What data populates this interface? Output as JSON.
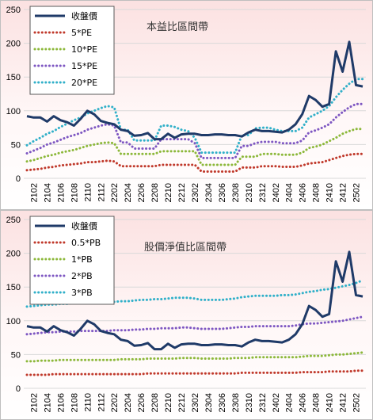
{
  "chart_data": [
    {
      "type": "line",
      "title": "本益比區間帶",
      "xlabel": "",
      "ylabel": "",
      "ylim": [
        0,
        250
      ],
      "yticks": [
        0,
        50,
        100,
        150,
        200,
        250
      ],
      "x_tick_labels": [
        "2102",
        "2104",
        "2106",
        "2108",
        "2110",
        "2112",
        "2202",
        "2204",
        "2206",
        "2208",
        "2210",
        "2212",
        "2302",
        "2304",
        "2306",
        "2308",
        "2310",
        "2312",
        "2402",
        "2404",
        "2406",
        "2408",
        "2410",
        "2412",
        "2502"
      ],
      "grid": true,
      "legend": "top-left",
      "x": [
        "2101",
        "2102",
        "2103",
        "2104",
        "2105",
        "2106",
        "2107",
        "2108",
        "2109",
        "2110",
        "2111",
        "2112",
        "2201",
        "2202",
        "2203",
        "2204",
        "2205",
        "2206",
        "2207",
        "2208",
        "2209",
        "2210",
        "2211",
        "2212",
        "2301",
        "2302",
        "2303",
        "2304",
        "2305",
        "2306",
        "2307",
        "2308",
        "2309",
        "2310",
        "2311",
        "2312",
        "2401",
        "2402",
        "2403",
        "2404",
        "2405",
        "2406",
        "2407",
        "2408",
        "2409",
        "2410",
        "2411",
        "2412",
        "2501",
        "2502",
        "2503"
      ],
      "series": [
        {
          "name": "收盤價",
          "color": "#1f3a68",
          "style": "solid",
          "values": [
            92,
            90,
            90,
            84,
            92,
            86,
            83,
            78,
            88,
            100,
            95,
            85,
            82,
            80,
            72,
            70,
            63,
            64,
            67,
            58,
            58,
            66,
            60,
            65,
            66,
            66,
            64,
            64,
            65,
            65,
            64,
            64,
            62,
            68,
            72,
            70,
            70,
            69,
            68,
            72,
            80,
            95,
            122,
            116,
            106,
            110,
            188,
            158,
            202,
            138,
            136
          ]
        },
        {
          "name": "5*PE",
          "color": "#c0392b",
          "style": "dotted",
          "values": [
            12,
            13,
            14,
            16,
            17,
            19,
            20,
            21,
            22,
            24,
            24,
            25,
            26,
            25,
            18,
            18,
            18,
            18,
            18,
            18,
            20,
            20,
            20,
            20,
            20,
            20,
            10,
            10,
            10,
            10,
            10,
            10,
            16,
            16,
            16,
            18,
            18,
            18,
            17,
            17,
            17,
            19,
            22,
            23,
            24,
            27,
            30,
            33,
            35,
            36,
            36
          ]
        },
        {
          "name": "10*PE",
          "color": "#8cb83a",
          "style": "dotted",
          "values": [
            25,
            27,
            30,
            33,
            35,
            38,
            40,
            42,
            45,
            48,
            50,
            52,
            53,
            52,
            36,
            36,
            36,
            36,
            36,
            36,
            40,
            40,
            40,
            40,
            40,
            40,
            20,
            20,
            20,
            20,
            20,
            20,
            32,
            32,
            32,
            36,
            36,
            36,
            35,
            35,
            35,
            38,
            45,
            47,
            50,
            55,
            60,
            66,
            70,
            73,
            73
          ]
        },
        {
          "name": "15*PE",
          "color": "#7e57c2",
          "style": "dotted",
          "values": [
            37,
            41,
            45,
            50,
            53,
            57,
            61,
            64,
            67,
            72,
            75,
            78,
            80,
            78,
            53,
            53,
            44,
            44,
            44,
            44,
            58,
            58,
            58,
            58,
            58,
            52,
            30,
            30,
            30,
            30,
            30,
            30,
            48,
            48,
            52,
            54,
            54,
            54,
            52,
            52,
            52,
            56,
            68,
            71,
            75,
            80,
            90,
            98,
            105,
            110,
            110
          ]
        },
        {
          "name": "20*PE",
          "color": "#31b0c9",
          "style": "dotted",
          "values": [
            49,
            55,
            60,
            66,
            70,
            76,
            81,
            86,
            90,
            96,
            100,
            104,
            107,
            105,
            72,
            72,
            56,
            56,
            56,
            56,
            78,
            78,
            76,
            72,
            70,
            60,
            38,
            38,
            38,
            38,
            38,
            38,
            64,
            64,
            74,
            75,
            75,
            72,
            70,
            70,
            70,
            75,
            90,
            95,
            100,
            107,
            120,
            131,
            140,
            147,
            147
          ]
        }
      ]
    },
    {
      "type": "line",
      "title": "股價淨值比區間帶",
      "xlabel": "",
      "ylabel": "",
      "ylim": [
        0,
        250
      ],
      "yticks": [
        0,
        50,
        100,
        150,
        200,
        250
      ],
      "x_tick_labels": [
        "2102",
        "2104",
        "2106",
        "2108",
        "2110",
        "2112",
        "2202",
        "2204",
        "2206",
        "2208",
        "2210",
        "2212",
        "2302",
        "2304",
        "2306",
        "2308",
        "2310",
        "2312",
        "2402",
        "2404",
        "2406",
        "2408",
        "2410",
        "2412",
        "2502"
      ],
      "grid": true,
      "legend": "top-left",
      "x": [
        "2101",
        "2102",
        "2103",
        "2104",
        "2105",
        "2106",
        "2107",
        "2108",
        "2109",
        "2110",
        "2111",
        "2112",
        "2201",
        "2202",
        "2203",
        "2204",
        "2205",
        "2206",
        "2207",
        "2208",
        "2209",
        "2210",
        "2211",
        "2212",
        "2301",
        "2302",
        "2303",
        "2304",
        "2305",
        "2306",
        "2307",
        "2308",
        "2309",
        "2310",
        "2311",
        "2312",
        "2401",
        "2402",
        "2403",
        "2404",
        "2405",
        "2406",
        "2407",
        "2408",
        "2409",
        "2410",
        "2411",
        "2412",
        "2501",
        "2502",
        "2503"
      ],
      "series": [
        {
          "name": "收盤價",
          "color": "#1f3a68",
          "style": "solid",
          "values": [
            92,
            90,
            90,
            84,
            92,
            86,
            83,
            78,
            88,
            100,
            95,
            85,
            82,
            80,
            72,
            70,
            63,
            64,
            67,
            58,
            58,
            66,
            60,
            65,
            66,
            66,
            64,
            64,
            65,
            65,
            64,
            64,
            62,
            68,
            72,
            70,
            70,
            69,
            68,
            72,
            80,
            95,
            122,
            116,
            106,
            110,
            188,
            158,
            202,
            138,
            136
          ]
        },
        {
          "name": "0.5*PB",
          "color": "#c0392b",
          "style": "dotted",
          "values": [
            20,
            20,
            20,
            20,
            21,
            21,
            21,
            21,
            21,
            21,
            21,
            21,
            21,
            21,
            21,
            21,
            21,
            21,
            22,
            22,
            22,
            22,
            22,
            22,
            22,
            22,
            22,
            22,
            22,
            22,
            22,
            22,
            23,
            23,
            23,
            23,
            23,
            23,
            23,
            23,
            23,
            24,
            24,
            24,
            24,
            25,
            25,
            25,
            25,
            26,
            26
          ]
        },
        {
          "name": "1*PB",
          "color": "#8cb83a",
          "style": "dotted",
          "values": [
            40,
            40,
            41,
            41,
            41,
            42,
            42,
            42,
            42,
            42,
            42,
            42,
            42,
            42,
            43,
            43,
            43,
            43,
            44,
            44,
            44,
            44,
            44,
            45,
            45,
            45,
            44,
            44,
            44,
            44,
            44,
            45,
            45,
            45,
            46,
            46,
            46,
            46,
            46,
            46,
            46,
            47,
            48,
            48,
            48,
            49,
            50,
            50,
            51,
            52,
            53
          ]
        },
        {
          "name": "2*PB",
          "color": "#7e57c2",
          "style": "dotted",
          "values": [
            80,
            81,
            82,
            83,
            83,
            84,
            84,
            84,
            85,
            85,
            85,
            85,
            85,
            86,
            86,
            86,
            87,
            87,
            88,
            88,
            89,
            89,
            89,
            90,
            90,
            89,
            88,
            88,
            88,
            88,
            89,
            90,
            91,
            91,
            92,
            92,
            92,
            92,
            92,
            92,
            93,
            95,
            96,
            96,
            97,
            98,
            99,
            100,
            102,
            104,
            106
          ]
        },
        {
          "name": "3*PB",
          "color": "#31b0c9",
          "style": "dotted",
          "values": [
            121,
            122,
            123,
            124,
            124,
            125,
            125,
            126,
            126,
            127,
            127,
            128,
            128,
            128,
            129,
            129,
            130,
            131,
            131,
            132,
            132,
            133,
            134,
            134,
            134,
            133,
            131,
            131,
            131,
            131,
            132,
            133,
            135,
            136,
            137,
            137,
            137,
            137,
            138,
            138,
            139,
            141,
            143,
            144,
            146,
            147,
            149,
            151,
            153,
            156,
            160
          ]
        }
      ]
    }
  ]
}
